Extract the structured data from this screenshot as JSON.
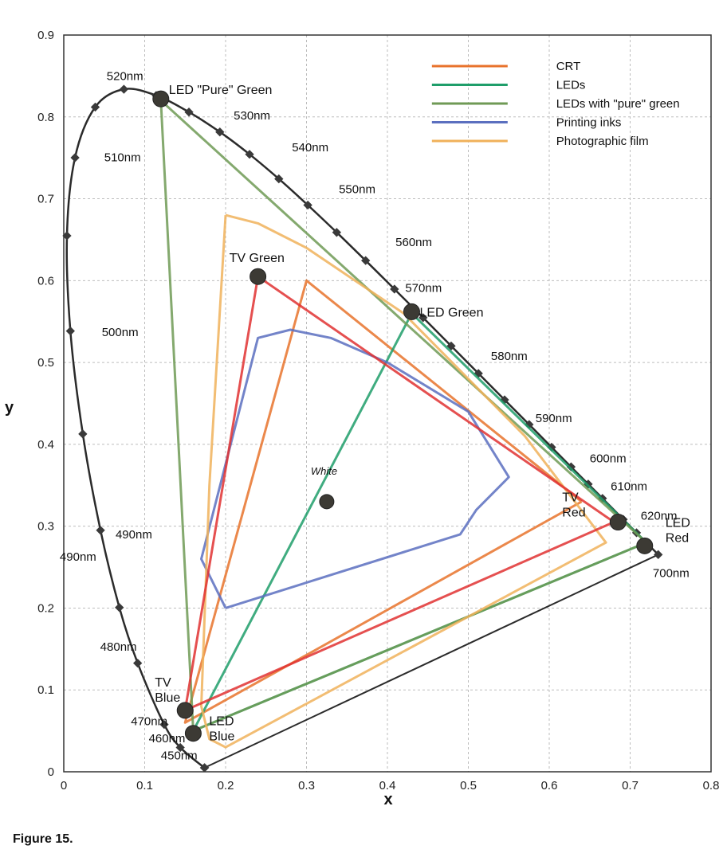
{
  "figure": {
    "caption": "Figure 15."
  },
  "chart_data": {
    "type": "scatter",
    "title": "",
    "xlabel": "x",
    "ylabel": "y",
    "xlim": [
      0,
      0.8
    ],
    "ylim": [
      0,
      0.9
    ],
    "x_ticks": [
      "0",
      "0.1",
      "0.2",
      "0.3",
      "0.4",
      "0.5",
      "0.6",
      "0.7",
      "0.8"
    ],
    "y_ticks": [
      "0",
      "0.1",
      "0.2",
      "0.3",
      "0.4",
      "0.5",
      "0.6",
      "0.7",
      "0.8",
      "0.9"
    ],
    "grid": true,
    "legend_position": "top-right",
    "spectral_locus": [
      [
        0.1741,
        0.005
      ],
      [
        0.1738,
        0.0049
      ],
      [
        0.144,
        0.0297
      ],
      [
        0.1241,
        0.0578
      ],
      [
        0.0913,
        0.1327
      ],
      [
        0.0687,
        0.2007
      ],
      [
        0.0454,
        0.295
      ],
      [
        0.0235,
        0.4127
      ],
      [
        0.0082,
        0.5384
      ],
      [
        0.0039,
        0.6548
      ],
      [
        0.0139,
        0.7502
      ],
      [
        0.0389,
        0.812
      ],
      [
        0.0743,
        0.8338
      ],
      [
        0.1142,
        0.8262
      ],
      [
        0.1547,
        0.8059
      ],
      [
        0.1929,
        0.7816
      ],
      [
        0.2296,
        0.7543
      ],
      [
        0.2658,
        0.7243
      ],
      [
        0.3016,
        0.6923
      ],
      [
        0.3373,
        0.6589
      ],
      [
        0.3731,
        0.6245
      ],
      [
        0.4087,
        0.5896
      ],
      [
        0.4441,
        0.5547
      ],
      [
        0.4788,
        0.5202
      ],
      [
        0.5125,
        0.4866
      ],
      [
        0.5448,
        0.4544
      ],
      [
        0.5752,
        0.4242
      ],
      [
        0.6029,
        0.3965
      ],
      [
        0.627,
        0.3725
      ],
      [
        0.6482,
        0.3514
      ],
      [
        0.6658,
        0.334
      ],
      [
        0.6915,
        0.3083
      ],
      [
        0.7079,
        0.292
      ],
      [
        0.7347,
        0.2653
      ]
    ],
    "wavelength_labels": [
      {
        "text": "450nm",
        "x": 0.12,
        "y": 0.015
      },
      {
        "text": "460nm",
        "x": 0.105,
        "y": 0.036
      },
      {
        "text": "470nm",
        "x": 0.083,
        "y": 0.057
      },
      {
        "text": "480nm",
        "x": 0.045,
        "y": 0.148
      },
      {
        "text": "490nm",
        "x": -0.005,
        "y": 0.258
      },
      {
        "text": "490nm",
        "x": 0.064,
        "y": 0.285
      },
      {
        "text": "500nm",
        "x": 0.047,
        "y": 0.532
      },
      {
        "text": "510nm",
        "x": 0.05,
        "y": 0.746
      },
      {
        "text": "520nm",
        "x": 0.053,
        "y": 0.845
      },
      {
        "text": "530nm",
        "x": 0.21,
        "y": 0.797
      },
      {
        "text": "540nm",
        "x": 0.282,
        "y": 0.758
      },
      {
        "text": "550nm",
        "x": 0.34,
        "y": 0.707
      },
      {
        "text": "560nm",
        "x": 0.41,
        "y": 0.642
      },
      {
        "text": "570nm",
        "x": 0.422,
        "y": 0.586
      },
      {
        "text": "580nm",
        "x": 0.528,
        "y": 0.503
      },
      {
        "text": "590nm",
        "x": 0.583,
        "y": 0.427
      },
      {
        "text": "600nm",
        "x": 0.65,
        "y": 0.378
      },
      {
        "text": "610nm",
        "x": 0.676,
        "y": 0.344
      },
      {
        "text": "620nm",
        "x": 0.713,
        "y": 0.308
      },
      {
        "text": "700nm",
        "x": 0.728,
        "y": 0.238
      }
    ],
    "legend_label_shift": 0.06,
    "series": [
      {
        "name": "CRT",
        "color": "#e8732c",
        "points": [
          [
            0.64,
            0.33
          ],
          [
            0.3,
            0.6
          ],
          [
            0.15,
            0.06
          ],
          [
            0.64,
            0.33
          ]
        ]
      },
      {
        "name": "LEDs",
        "color": "#1f9e6a",
        "points": [
          [
            0.72,
            0.28
          ],
          [
            0.43,
            0.56
          ],
          [
            0.16,
            0.05
          ],
          [
            0.72,
            0.28
          ]
        ]
      },
      {
        "name": "LEDs with \"pure\" green",
        "color": "#6f9a55",
        "points": [
          [
            0.72,
            0.28
          ],
          [
            0.12,
            0.82
          ],
          [
            0.16,
            0.05
          ],
          [
            0.72,
            0.28
          ]
        ]
      },
      {
        "name": "Printing inks",
        "color": "#5b6fbf",
        "points": [
          [
            0.2,
            0.2
          ],
          [
            0.17,
            0.26
          ],
          [
            0.24,
            0.53
          ],
          [
            0.28,
            0.54
          ],
          [
            0.33,
            0.53
          ],
          [
            0.4,
            0.5
          ],
          [
            0.5,
            0.44
          ],
          [
            0.55,
            0.36
          ],
          [
            0.51,
            0.32
          ],
          [
            0.49,
            0.29
          ],
          [
            0.2,
            0.2
          ]
        ]
      },
      {
        "name": "Photographic film",
        "color": "#f0b15a",
        "points": [
          [
            0.2,
            0.68
          ],
          [
            0.24,
            0.67
          ],
          [
            0.3,
            0.64
          ],
          [
            0.42,
            0.56
          ],
          [
            0.57,
            0.41
          ],
          [
            0.67,
            0.28
          ],
          [
            0.2,
            0.03
          ],
          [
            0.18,
            0.04
          ],
          [
            0.17,
            0.08
          ],
          [
            0.18,
            0.35
          ],
          [
            0.2,
            0.68
          ]
        ]
      }
    ],
    "tv_triangle": {
      "color": "#e03131",
      "points": [
        [
          0.68,
          0.305
        ],
        [
          0.24,
          0.605
        ],
        [
          0.15,
          0.075
        ],
        [
          0.68,
          0.305
        ]
      ]
    },
    "primaries": [
      {
        "label": "LED \"Pure\" Green",
        "x": 0.12,
        "y": 0.822
      },
      {
        "label": "TV Green",
        "x": 0.24,
        "y": 0.605
      },
      {
        "label": "LED Green",
        "x": 0.43,
        "y": 0.562
      },
      {
        "label": "TV Red",
        "x": 0.685,
        "y": 0.305
      },
      {
        "label": "LED Red",
        "x": 0.718,
        "y": 0.276
      },
      {
        "label": "TV Blue",
        "x": 0.15,
        "y": 0.075
      },
      {
        "label": "LED Blue",
        "x": 0.16,
        "y": 0.047
      },
      {
        "label": "White",
        "x": 0.325,
        "y": 0.33
      }
    ]
  }
}
